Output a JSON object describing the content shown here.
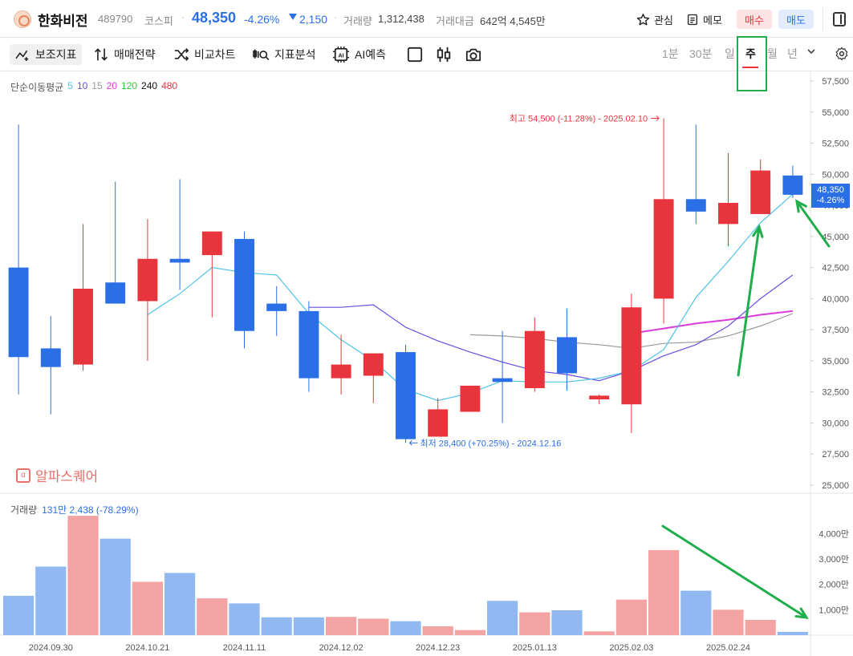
{
  "header": {
    "name": "한화비전",
    "code": "489790",
    "market": "코스피",
    "dot": "·",
    "price": "48,350",
    "rate": "-4.26%",
    "change": "2,150",
    "volume_label": "거래량",
    "volume": "1,312,438",
    "amount_label": "거래대금",
    "amount": "642억 4,545만",
    "fav_label": "관심",
    "memo_label": "메모",
    "buy_label": "매수",
    "sell_label": "매도"
  },
  "toolbar": {
    "sub_label": "보조지표",
    "trade_label": "매매전략",
    "compare_label": "비교차트",
    "analysis_label": "지표분석",
    "ai_label": "AI예측",
    "periods": {
      "m1": "1분",
      "m30": "30분",
      "day": "일",
      "week": "주",
      "month": "월",
      "year": "년"
    }
  },
  "ma_legend": {
    "title": "단순이동평균",
    "p5": "5",
    "p10": "10",
    "p15": "15",
    "p20": "20",
    "p120": "120",
    "p240": "240",
    "p480": "480"
  },
  "brand": "알파스퀘어",
  "price_tag": {
    "price": "48,350",
    "rate": "-4.26%"
  },
  "vol_legend": {
    "label": "거래량",
    "value": "131만 2,438 (-78.29%)"
  },
  "colors": {
    "up": "#e8343c",
    "down": "#2b6fe6",
    "ma5": "#4dc3e8",
    "ma10": "#6a4fe0",
    "ma15": "#9a9a9a",
    "ma20": "#d83bdc",
    "annotation": "#1fae4b"
  },
  "chart_data": {
    "type": "candlestick",
    "ylim": [
      25000,
      57500
    ],
    "y_ticks": [
      "57,500",
      "55,000",
      "52,500",
      "50,000",
      "47,500",
      "45,000",
      "42,500",
      "40,000",
      "37,500",
      "35,000",
      "32,500",
      "30,000",
      "27,500",
      "25,000"
    ],
    "y_tick_values": [
      57500,
      55000,
      52500,
      50000,
      47500,
      45000,
      42500,
      40000,
      37500,
      35000,
      32500,
      30000,
      27500,
      25000
    ],
    "x_labels": [
      "2024.09.30",
      "2024.10.21",
      "2024.11.11",
      "2024.12.02",
      "2024.12.23",
      "2025.01.13",
      "2025.02.03",
      "2025.02.24"
    ],
    "x_label_index": [
      1,
      4,
      7,
      10,
      13,
      16,
      19,
      22
    ],
    "candles": [
      {
        "o": 42500,
        "h": 54000,
        "l": 32300,
        "c": 35300
      },
      {
        "o": 36000,
        "h": 38600,
        "l": 30700,
        "c": 34500
      },
      {
        "o": 34700,
        "h": 46000,
        "l": 34200,
        "c": 40800
      },
      {
        "o": 41300,
        "h": 49400,
        "l": 39600,
        "c": 39600
      },
      {
        "o": 39800,
        "h": 46400,
        "l": 35000,
        "c": 43200
      },
      {
        "o": 43200,
        "h": 49600,
        "l": 40700,
        "c": 42900
      },
      {
        "o": 43500,
        "h": 45400,
        "l": 38500,
        "c": 45400
      },
      {
        "o": 44800,
        "h": 45400,
        "l": 36000,
        "c": 37400
      },
      {
        "o": 39600,
        "h": 41000,
        "l": 37000,
        "c": 39000
      },
      {
        "o": 39000,
        "h": 39800,
        "l": 32500,
        "c": 33600
      },
      {
        "o": 33600,
        "h": 37100,
        "l": 32300,
        "c": 34700
      },
      {
        "o": 33800,
        "h": 35600,
        "l": 31600,
        "c": 35600
      },
      {
        "o": 35700,
        "h": 36300,
        "l": 28400,
        "c": 28700
      },
      {
        "o": 28900,
        "h": 32000,
        "l": 28900,
        "c": 31100
      },
      {
        "o": 30900,
        "h": 33000,
        "l": 30900,
        "c": 33000
      },
      {
        "o": 33600,
        "h": 37400,
        "l": 30000,
        "c": 33300
      },
      {
        "o": 32800,
        "h": 38500,
        "l": 32500,
        "c": 37400
      },
      {
        "o": 36900,
        "h": 39200,
        "l": 32600,
        "c": 34000
      },
      {
        "o": 31900,
        "h": 32300,
        "l": 31500,
        "c": 32200
      },
      {
        "o": 31500,
        "h": 40400,
        "l": 29200,
        "c": 39300
      },
      {
        "o": 40000,
        "h": 54500,
        "l": 38000,
        "c": 48000
      },
      {
        "o": 48000,
        "h": 54000,
        "l": 46000,
        "c": 47000
      },
      {
        "o": 46000,
        "h": 51700,
        "l": 44200,
        "c": 47700
      },
      {
        "o": 46800,
        "h": 51200,
        "l": 46800,
        "c": 50300
      },
      {
        "o": 49900,
        "h": 50700,
        "l": 48100,
        "c": 48350
      }
    ],
    "ma5": [
      null,
      null,
      null,
      null,
      38700,
      40400,
      42500,
      42100,
      41900,
      38800,
      36700,
      35000,
      32700,
      31800,
      32400,
      33400,
      33300,
      33300,
      33600,
      34200,
      35900,
      40100,
      43000,
      46100,
      48400
    ],
    "ma10": [
      null,
      null,
      null,
      null,
      null,
      null,
      null,
      null,
      null,
      39300,
      39300,
      39500,
      37700,
      36600,
      35700,
      34900,
      34200,
      33900,
      33400,
      34200,
      35400,
      36300,
      37800,
      40000,
      41900
    ],
    "ma15": [
      null,
      null,
      null,
      null,
      null,
      null,
      null,
      null,
      null,
      null,
      null,
      null,
      null,
      null,
      37100,
      37000,
      36800,
      36500,
      36300,
      36000,
      36400,
      36500,
      37000,
      37800,
      38800
    ],
    "ma20": [
      null,
      null,
      null,
      null,
      null,
      null,
      null,
      null,
      null,
      null,
      null,
      null,
      null,
      null,
      null,
      null,
      null,
      null,
      null,
      37200,
      37600,
      38000,
      38300,
      38700,
      39000
    ],
    "high_note": "최고 54,500 (-11.28%) - 2025.02.10",
    "low_note": "최저 28,400 (+70.25%) - 2024.12.16",
    "volume": {
      "ticks": [
        "4,000만",
        "3,000만",
        "2,000만",
        "1,000만"
      ],
      "tick_values": [
        4000,
        3000,
        2000,
        1000
      ],
      "max": 4800,
      "values": [
        1550,
        2700,
        4700,
        3800,
        2100,
        2450,
        1450,
        1250,
        700,
        700,
        720,
        650,
        550,
        350,
        200,
        1350,
        900,
        980,
        150,
        1400,
        3350,
        1750,
        1000,
        600,
        130
      ]
    }
  }
}
